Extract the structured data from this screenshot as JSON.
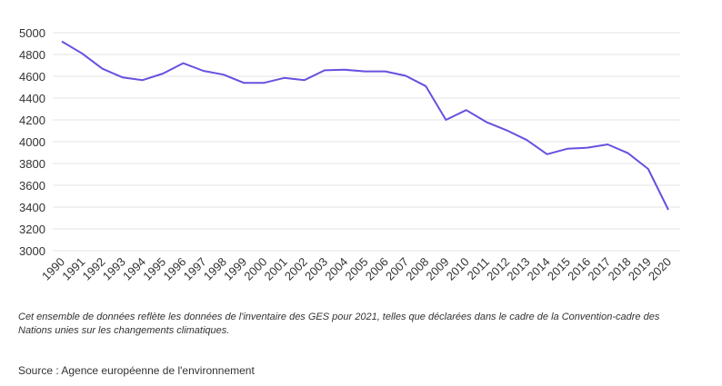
{
  "chart_data": {
    "type": "line",
    "x": [
      "1990",
      "1991",
      "1992",
      "1993",
      "1994",
      "1995",
      "1996",
      "1997",
      "1998",
      "1999",
      "2000",
      "2001",
      "2002",
      "2003",
      "2004",
      "2005",
      "2006",
      "2007",
      "2008",
      "2009",
      "2010",
      "2011",
      "2012",
      "2013",
      "2014",
      "2015",
      "2016",
      "2017",
      "2018",
      "2019",
      "2020"
    ],
    "series": [
      {
        "values": [
          4920,
          4810,
          4670,
          4590,
          4565,
          4625,
          4720,
          4650,
          4615,
          4540,
          4540,
          4585,
          4565,
          4655,
          4660,
          4645,
          4645,
          4605,
          4510,
          4200,
          4290,
          4180,
          4105,
          4015,
          3885,
          3935,
          3945,
          3975,
          3895,
          3750,
          3375
        ],
        "color": "#6a4fe0"
      }
    ],
    "ylim": [
      3000,
      5000
    ],
    "yticks": [
      "5000",
      "4800",
      "4600",
      "4400",
      "4200",
      "4000",
      "3800",
      "3600",
      "3400",
      "3200",
      "3000"
    ],
    "grid": true,
    "xlabel": "",
    "ylabel": "",
    "title": ""
  },
  "note": "Cet ensemble de données reflète les données de l'inventaire des GES pour 2021, telles que déclarées dans le cadre de la Convention-cadre des Nations unies sur les changements climatiques.",
  "source": "Source : Agence européenne de l'environnement"
}
